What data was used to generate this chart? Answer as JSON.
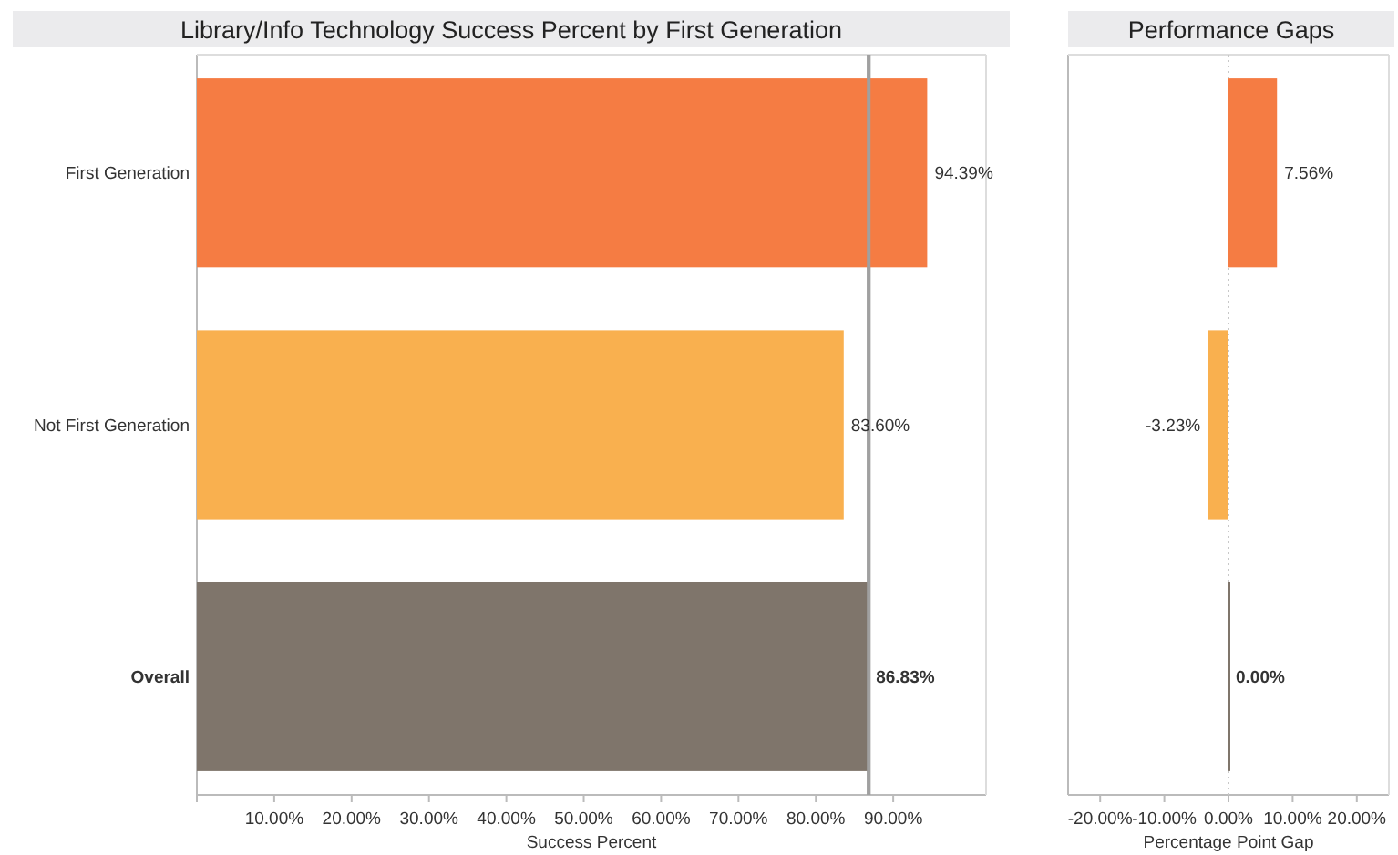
{
  "chart_data": [
    {
      "type": "bar",
      "orientation": "horizontal",
      "title": "Library/Info Technology Success Percent by First Generation",
      "xlabel": "Success Percent",
      "categories": [
        "First Generation",
        "Not First Generation",
        "Overall"
      ],
      "values": [
        94.39,
        83.6,
        86.83
      ],
      "colors": [
        "#f57c43",
        "#f9b04f",
        "#7f756b"
      ],
      "value_labels": [
        "94.39%",
        "83.60%",
        "86.83%"
      ],
      "xlim": [
        0,
        102
      ],
      "xticks": [
        {
          "value": 0,
          "label": null
        },
        {
          "value": 10,
          "label": "10.00%"
        },
        {
          "value": 20,
          "label": "20.00%"
        },
        {
          "value": 30,
          "label": "30.00%"
        },
        {
          "value": 40,
          "label": "40.00%"
        },
        {
          "value": 50,
          "label": "50.00%"
        },
        {
          "value": 60,
          "label": "60.00%"
        },
        {
          "value": 70,
          "label": "70.00%"
        },
        {
          "value": 80,
          "label": "80.00%"
        },
        {
          "value": 90,
          "label": "90.00%"
        }
      ],
      "ref_lines": [
        {
          "axis": "x",
          "value": 86.83,
          "color": "#a0a0a0",
          "line_style": "solid"
        }
      ],
      "grid": false
    },
    {
      "type": "bar",
      "orientation": "horizontal",
      "title": "Performance Gaps",
      "xlabel": "Percentage Point Gap",
      "values": [
        7.56,
        -3.23,
        0.0
      ],
      "categories": [
        null,
        null,
        null
      ],
      "colors": [
        "#f57c43",
        "#f9b04f",
        "#7f756b"
      ],
      "value_labels": [
        "7.56%",
        "-3.23%",
        "0.00%"
      ],
      "xlim": [
        -25,
        25
      ],
      "xticks": [
        {
          "value": -20,
          "label": "-20.00%"
        },
        {
          "value": -10,
          "label": "-10.00%"
        },
        {
          "value": 0,
          "label": "0.00%"
        },
        {
          "value": 10,
          "label": "10.00%"
        },
        {
          "value": 20,
          "label": "20.00%"
        }
      ],
      "ref_lines": [
        {
          "axis": "x",
          "value": 0,
          "color": "#c8c8c8",
          "line_style": "dotted"
        }
      ],
      "tick_labels": "x",
      "grid": false
    }
  ]
}
